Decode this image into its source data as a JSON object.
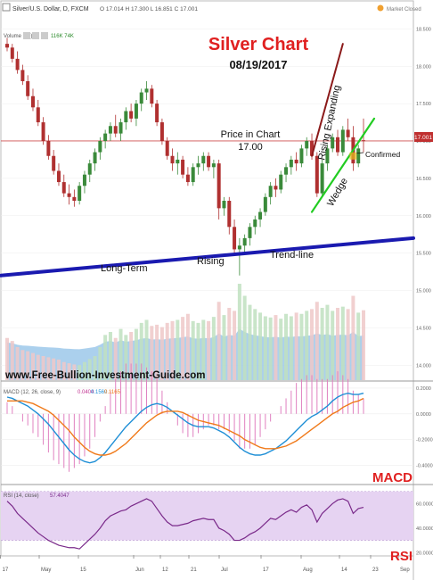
{
  "header": {
    "symbol": "Silver/U.S. Dollar, D, FXCM",
    "ohlc": "O 17.014  H 17.300  L 16.851  C 17.001",
    "market_status": "Market Closed",
    "volume_label": "Volume (20)",
    "volume_values": "116K  74K"
  },
  "annotations": {
    "title": "Silver Chart",
    "date": "08/19/2017",
    "price_line1": "Price in Chart",
    "price_line2": "17.00",
    "rising_expanding": "Rising Expanding",
    "wedge": "Wedge",
    "confirmed": "Confirmed",
    "long_term": "Long-Term",
    "rising": "Rising",
    "trend_line": "Trend-line",
    "website": "www.Free-Bullion-Investment-Guide.com",
    "macd_tag": "MACD",
    "rsi_tag": "RSI"
  },
  "macd_header": {
    "label": "MACD (12, 26, close, 9)",
    "v1": "0.0404",
    "v2": "0.1569",
    "v3": "0.1165"
  },
  "rsi_header": {
    "label": "RSI (14, close)",
    "v1": "57.4047"
  },
  "price_tag": "17.001",
  "colors": {
    "up": "#3a8a3a",
    "down": "#b03030",
    "trendline": "#1a1ab0",
    "wedge_upper": "#8b1a1a",
    "wedge_lower": "#22cc22",
    "volume_area": "#9cc8ea",
    "macd_line": "#1f8fd6",
    "signal_line": "#f07a1a",
    "rsi_line": "#7a2a8a",
    "rsi_band": "#e6d3f2",
    "annotation_red": "#e02020"
  },
  "chart_data": [
    {
      "type": "candlestick",
      "title": "Silver Chart",
      "subtitle": "08/19/2017",
      "y_ticks": [
        "18.500",
        "18.000",
        "17.500",
        "17.000",
        "16.500",
        "16.000",
        "15.500",
        "15.000",
        "14.500",
        "14.000"
      ],
      "ylim": [
        13.8,
        18.6
      ],
      "x_ticks": [
        "17",
        "May",
        "15",
        "Jun",
        "12",
        "21",
        "Jul",
        "17",
        "Aug",
        "14",
        "23",
        "Sep"
      ],
      "candles": [
        [
          18.3,
          18.38,
          18.2,
          18.25
        ],
        [
          18.25,
          18.3,
          18.05,
          18.1
        ],
        [
          18.1,
          18.2,
          17.9,
          17.95
        ],
        [
          17.95,
          18.02,
          17.75,
          17.8
        ],
        [
          17.8,
          17.88,
          17.55,
          17.6
        ],
        [
          17.6,
          17.7,
          17.4,
          17.45
        ],
        [
          17.45,
          17.55,
          17.2,
          17.25
        ],
        [
          17.25,
          17.32,
          16.95,
          17.0
        ],
        [
          17.0,
          17.08,
          16.75,
          16.8
        ],
        [
          16.8,
          16.88,
          16.55,
          16.6
        ],
        [
          16.6,
          16.7,
          16.4,
          16.45
        ],
        [
          16.45,
          16.55,
          16.25,
          16.3
        ],
        [
          16.3,
          16.42,
          16.15,
          16.25
        ],
        [
          16.25,
          16.35,
          16.12,
          16.2
        ],
        [
          16.2,
          16.45,
          16.15,
          16.4
        ],
        [
          16.4,
          16.6,
          16.3,
          16.55
        ],
        [
          16.55,
          16.75,
          16.45,
          16.7
        ],
        [
          16.7,
          16.9,
          16.6,
          16.85
        ],
        [
          16.85,
          17.05,
          16.75,
          17.0
        ],
        [
          17.0,
          17.15,
          16.9,
          17.1
        ],
        [
          17.1,
          17.25,
          17.0,
          17.2
        ],
        [
          17.2,
          17.35,
          17.05,
          17.1
        ],
        [
          17.1,
          17.3,
          17.0,
          17.25
        ],
        [
          17.25,
          17.45,
          17.15,
          17.4
        ],
        [
          17.4,
          17.5,
          17.25,
          17.3
        ],
        [
          17.3,
          17.55,
          17.2,
          17.5
        ],
        [
          17.5,
          17.7,
          17.4,
          17.65
        ],
        [
          17.65,
          17.8,
          17.55,
          17.7
        ],
        [
          17.7,
          17.75,
          17.45,
          17.5
        ],
        [
          17.5,
          17.55,
          17.2,
          17.25
        ],
        [
          17.25,
          17.3,
          16.95,
          17.0
        ],
        [
          17.0,
          17.05,
          16.75,
          16.8
        ],
        [
          16.8,
          16.9,
          16.6,
          16.7
        ],
        [
          16.7,
          16.85,
          16.55,
          16.75
        ],
        [
          16.75,
          16.8,
          16.5,
          16.55
        ],
        [
          16.55,
          16.65,
          16.4,
          16.45
        ],
        [
          16.45,
          16.7,
          16.4,
          16.65
        ],
        [
          16.65,
          16.8,
          16.55,
          16.7
        ],
        [
          16.7,
          16.85,
          16.6,
          16.8
        ],
        [
          16.8,
          16.85,
          16.6,
          16.65
        ],
        [
          16.65,
          16.75,
          16.5,
          16.7
        ],
        [
          16.7,
          16.75,
          15.95,
          16.1
        ],
        [
          16.1,
          16.25,
          16.0,
          16.2
        ],
        [
          16.2,
          16.25,
          15.75,
          15.85
        ],
        [
          15.85,
          15.95,
          15.5,
          15.55
        ],
        [
          15.55,
          15.7,
          15.2,
          15.6
        ],
        [
          15.6,
          15.75,
          15.5,
          15.7
        ],
        [
          15.7,
          15.9,
          15.6,
          15.85
        ],
        [
          15.85,
          16.0,
          15.75,
          15.95
        ],
        [
          15.95,
          16.1,
          15.85,
          16.05
        ],
        [
          16.05,
          16.3,
          16.0,
          16.25
        ],
        [
          16.25,
          16.45,
          16.15,
          16.4
        ],
        [
          16.4,
          16.5,
          16.25,
          16.35
        ],
        [
          16.35,
          16.6,
          16.3,
          16.55
        ],
        [
          16.55,
          16.7,
          16.45,
          16.65
        ],
        [
          16.65,
          16.8,
          16.55,
          16.75
        ],
        [
          16.75,
          16.85,
          16.6,
          16.7
        ],
        [
          16.7,
          16.95,
          16.65,
          16.9
        ],
        [
          16.9,
          17.05,
          16.8,
          17.0
        ],
        [
          17.0,
          17.1,
          16.75,
          16.8
        ],
        [
          16.8,
          16.85,
          16.25,
          16.3
        ],
        [
          16.3,
          16.75,
          16.25,
          16.7
        ],
        [
          16.7,
          16.95,
          16.6,
          16.9
        ],
        [
          16.9,
          17.1,
          16.85,
          17.05
        ],
        [
          17.05,
          17.15,
          16.8,
          16.85
        ],
        [
          16.85,
          17.2,
          16.8,
          17.15
        ],
        [
          17.15,
          17.3,
          17.0,
          17.05
        ],
        [
          17.05,
          17.2,
          16.6,
          16.7
        ],
        [
          16.7,
          16.95,
          16.65,
          16.9
        ],
        [
          17.01,
          17.3,
          16.85,
          17.0
        ]
      ],
      "volume": [
        70,
        65,
        55,
        50,
        48,
        45,
        42,
        40,
        38,
        36,
        34,
        30,
        28,
        26,
        25,
        30,
        35,
        40,
        55,
        75,
        80,
        70,
        85,
        75,
        80,
        85,
        95,
        100,
        90,
        92,
        88,
        95,
        98,
        100,
        105,
        110,
        98,
        95,
        100,
        98,
        105,
        130,
        108,
        120,
        115,
        160,
        140,
        125,
        118,
        112,
        106,
        104,
        108,
        102,
        110,
        106,
        112,
        110,
        115,
        118,
        130,
        120,
        125,
        115,
        120,
        122,
        118,
        140,
        112,
        116
      ],
      "series": [
        {
          "name": "Long-Term Rising Trend-line",
          "from": [
            0,
            15.2
          ],
          "to": [
            69,
            15.7
          ]
        },
        {
          "name": "Rising Expanding Wedge upper",
          "from": [
            59,
            16.8
          ],
          "to": [
            65,
            18.3
          ]
        },
        {
          "name": "Rising Expanding Wedge lower",
          "from": [
            59,
            16.05
          ],
          "to": [
            69,
            17.3
          ]
        }
      ],
      "current_price": 17.001,
      "confirmed_point": [
        67,
        16.8
      ]
    },
    {
      "type": "line",
      "title": "MACD (12, 26, close, 9)",
      "y_ticks": [
        "0.2000",
        "0.0000",
        "-0.2000",
        "-0.4000"
      ],
      "ylim": [
        -0.5,
        0.22
      ],
      "series": [
        {
          "name": "MACD",
          "values": [
            0.13,
            0.12,
            0.1,
            0.08,
            0.06,
            0.03,
            0.0,
            -0.04,
            -0.08,
            -0.13,
            -0.18,
            -0.23,
            -0.28,
            -0.32,
            -0.35,
            -0.37,
            -0.38,
            -0.37,
            -0.34,
            -0.3,
            -0.25,
            -0.2,
            -0.15,
            -0.1,
            -0.06,
            -0.02,
            0.02,
            0.05,
            0.07,
            0.08,
            0.07,
            0.05,
            0.02,
            -0.01,
            -0.04,
            -0.07,
            -0.09,
            -0.1,
            -0.1,
            -0.1,
            -0.11,
            -0.13,
            -0.15,
            -0.18,
            -0.22,
            -0.26,
            -0.29,
            -0.31,
            -0.32,
            -0.32,
            -0.31,
            -0.29,
            -0.27,
            -0.24,
            -0.21,
            -0.17,
            -0.13,
            -0.09,
            -0.05,
            -0.02,
            0.0,
            0.03,
            0.06,
            0.1,
            0.13,
            0.15,
            0.16,
            0.15,
            0.15,
            0.16
          ]
        },
        {
          "name": "Signal",
          "values": [
            0.1,
            0.1,
            0.1,
            0.1,
            0.09,
            0.08,
            0.06,
            0.04,
            0.02,
            -0.01,
            -0.05,
            -0.09,
            -0.13,
            -0.18,
            -0.22,
            -0.26,
            -0.29,
            -0.31,
            -0.32,
            -0.32,
            -0.31,
            -0.29,
            -0.26,
            -0.23,
            -0.19,
            -0.15,
            -0.11,
            -0.07,
            -0.04,
            -0.01,
            0.01,
            0.02,
            0.02,
            0.02,
            0.01,
            -0.01,
            -0.03,
            -0.05,
            -0.06,
            -0.07,
            -0.08,
            -0.09,
            -0.11,
            -0.13,
            -0.15,
            -0.17,
            -0.2,
            -0.22,
            -0.24,
            -0.26,
            -0.27,
            -0.27,
            -0.27,
            -0.26,
            -0.25,
            -0.23,
            -0.21,
            -0.18,
            -0.15,
            -0.12,
            -0.09,
            -0.06,
            -0.03,
            0.0,
            0.02,
            0.05,
            0.07,
            0.09,
            0.1,
            0.12
          ]
        }
      ]
    },
    {
      "type": "line",
      "title": "RSI (14, close)",
      "y_ticks": [
        "60.0000",
        "40.0000",
        "20.0000"
      ],
      "ylim": [
        18,
        72
      ],
      "band": [
        30,
        70
      ],
      "series": [
        {
          "name": "RSI",
          "values": [
            62,
            58,
            52,
            48,
            44,
            40,
            36,
            33,
            30,
            28,
            26,
            25,
            24,
            24,
            23,
            27,
            31,
            35,
            40,
            46,
            50,
            52,
            54,
            55,
            58,
            60,
            62,
            64,
            62,
            56,
            50,
            45,
            42,
            42,
            43,
            44,
            46,
            47,
            48,
            47,
            47,
            40,
            38,
            35,
            30,
            30,
            32,
            35,
            37,
            40,
            44,
            48,
            47,
            50,
            53,
            55,
            53,
            57,
            59,
            55,
            45,
            52,
            56,
            60,
            63,
            64,
            62,
            52,
            56,
            57
          ]
        }
      ]
    }
  ]
}
